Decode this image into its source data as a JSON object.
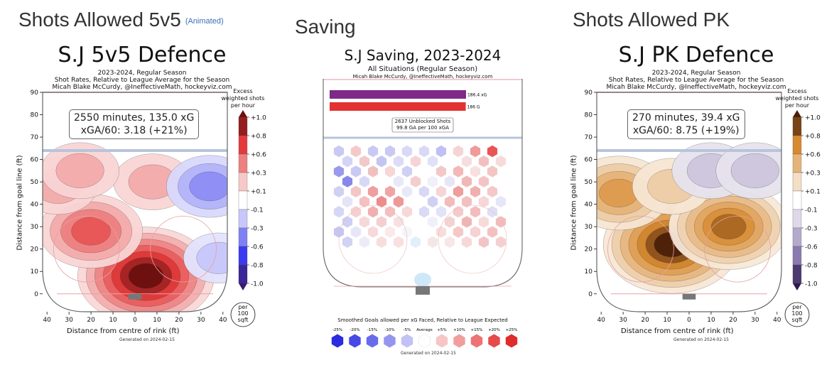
{
  "sections": {
    "left": {
      "heading": "Shots Allowed 5v5",
      "animated_link": "(Animated)"
    },
    "middle": {
      "heading": "Saving"
    },
    "right": {
      "heading": "Shots Allowed PK"
    }
  },
  "colors": {
    "red": "#e03030",
    "blue": "#3a3ad8",
    "orange": "#d4832e",
    "purple": "#5a3a86"
  },
  "chart_data": [
    {
      "type": "heatmap",
      "title": "S.J 5v5 Defence",
      "subtitle_lines": [
        "2023-2024, Regular Season",
        "Shot Rates, Relative to League Average for the Season",
        "Micah Blake McCurdy, @IneffectiveMath, hockeyviz.com"
      ],
      "info_line1": "2550 minutes, 135.0 xG",
      "info_line2": "xGA/60: 3.18 (+21%)",
      "xlabel": "Distance from centre of rink (ft)",
      "ylabel": "Distance from goal line (ft)",
      "x_ticks": [
        "40",
        "30",
        "20",
        "10",
        "0",
        "10",
        "20",
        "30",
        "40"
      ],
      "y_ticks": [
        "0",
        "10",
        "20",
        "30",
        "40",
        "50",
        "60",
        "70",
        "80",
        "90"
      ],
      "xlim": [
        -42,
        42
      ],
      "ylim": [
        -8,
        90
      ],
      "colorbar_title_lines": [
        "Excess",
        "weighted shots",
        "per hour"
      ],
      "colorbar_ticks": [
        "+1.0",
        "+0.8",
        "+0.6",
        "+0.3",
        "+0.1",
        "-0.1",
        "-0.3",
        "-0.6",
        "-0.8",
        "-1.0"
      ],
      "colorbar_tick_values": [
        1.0,
        0.8,
        0.6,
        0.3,
        0.1,
        -0.1,
        -0.3,
        -0.6,
        -0.8,
        -1.0
      ],
      "unit_lines": [
        "per",
        "100",
        "sqft"
      ],
      "footer": "Generated on 2024-02-15",
      "hotspots": [
        {
          "x": 5,
          "y": 8,
          "level": 1.0
        },
        {
          "x": -20,
          "y": 28,
          "level": 0.6
        },
        {
          "x": 8,
          "y": 50,
          "level": 0.3
        },
        {
          "x": -35,
          "y": 48,
          "level": 0.3
        },
        {
          "x": 34,
          "y": 48,
          "level": -0.4
        },
        {
          "x": 38,
          "y": 16,
          "level": -0.2
        },
        {
          "x": -25,
          "y": 55,
          "level": 0.3
        }
      ]
    },
    {
      "type": "heatmap",
      "title": "S.J Saving, 2023-2024",
      "subtitle_lines": [
        "All Situations (Regular Season)",
        "Micah Blake McCurdy, @IneffectiveMath, hockeyviz.com"
      ],
      "bars": [
        {
          "label": "186.4 xG",
          "value": 186.4,
          "color": "#7e2a86"
        },
        {
          "label": "186 G",
          "value": 186,
          "color": "#e23232"
        }
      ],
      "summary_line1": "2637 Unblocked Shots",
      "summary_line2": "99.8 GA per 100 xGA",
      "legend_title": "Smoothed Goals allowed per xG Faced, Relative to League Expected",
      "legend_items": [
        "-25%",
        "-20%",
        "-15%",
        "-10%",
        "-5%",
        "Average",
        "+5%",
        "+10%",
        "+15%",
        "+20%",
        "+25%"
      ],
      "legend_values": [
        -25,
        -20,
        -15,
        -10,
        -5,
        0,
        5,
        10,
        15,
        20,
        25
      ],
      "footer": "Generated on 2024-02-15"
    },
    {
      "type": "heatmap",
      "title": "S.J PK Defence",
      "subtitle_lines": [
        "2023-2024, Regular Season",
        "Shot Rates, Relative to League Average for the Season",
        "Micah Blake McCurdy, @IneffectiveMath, hockeyviz.com"
      ],
      "info_line1": "270 minutes, 39.4 xG",
      "info_line2": "xGA/60: 8.75 (+19%)",
      "xlabel": "Distance from centre of rink (ft)",
      "ylabel": "Distance from goal line (ft)",
      "x_ticks": [
        "40",
        "30",
        "20",
        "10",
        "0",
        "10",
        "20",
        "30",
        "40"
      ],
      "y_ticks": [
        "0",
        "10",
        "20",
        "30",
        "40",
        "50",
        "60",
        "70",
        "80",
        "90"
      ],
      "xlim": [
        -42,
        42
      ],
      "ylim": [
        -8,
        90
      ],
      "colorbar_title_lines": [
        "Excess",
        "weighted shots",
        "per hour"
      ],
      "colorbar_ticks": [
        "+1.0",
        "+0.8",
        "+0.6",
        "+0.3",
        "+0.1",
        "-0.1",
        "-0.3",
        "-0.6",
        "-0.8",
        "-1.0"
      ],
      "colorbar_tick_values": [
        1.0,
        0.8,
        0.6,
        0.3,
        0.1,
        -0.1,
        -0.3,
        -0.6,
        -0.8,
        -1.0
      ],
      "unit_lines": [
        "per",
        "100",
        "sqft"
      ],
      "footer": "Generated on 2024-02-15",
      "hotspots": [
        {
          "x": -8,
          "y": 22,
          "level": 1.0
        },
        {
          "x": 18,
          "y": 30,
          "level": 0.8
        },
        {
          "x": -32,
          "y": 45,
          "level": 0.6
        },
        {
          "x": -8,
          "y": 48,
          "level": 0.3
        },
        {
          "x": 10,
          "y": 55,
          "level": -0.3
        },
        {
          "x": 30,
          "y": 55,
          "level": -0.3
        }
      ]
    }
  ]
}
